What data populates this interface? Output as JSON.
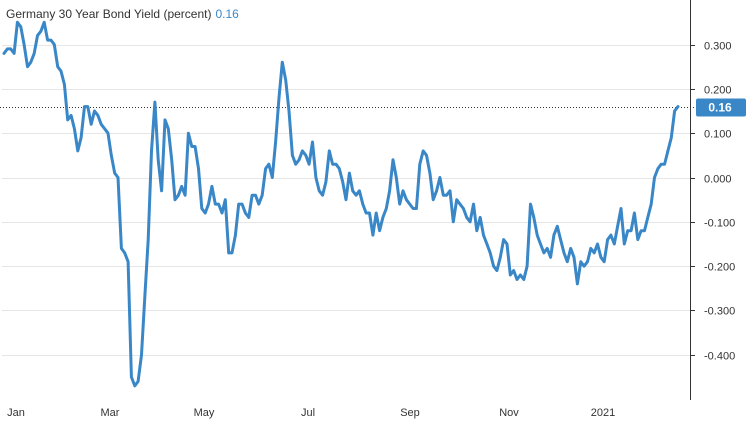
{
  "chart_data": {
    "type": "line",
    "title": "Germany 30 Year Bond Yield (percent)",
    "last_value_label": "0.16",
    "xlabel": "",
    "ylabel": "",
    "ylim": [
      -0.5,
      0.4
    ],
    "y_ticks": [
      -0.4,
      -0.3,
      -0.2,
      -0.1,
      0.0,
      0.1,
      0.2,
      0.3
    ],
    "y_tick_labels": [
      "-0.400",
      "-0.300",
      "-0.200",
      "-0.100",
      "0.000",
      "0.100",
      "0.200",
      "0.300"
    ],
    "x_ticks": [
      "Jan",
      "Mar",
      "May",
      "Jul",
      "Sep",
      "Nov",
      "2021"
    ],
    "grid": true,
    "line_color": "#3a87c8",
    "badge_color": "#3a87c8",
    "series": [
      {
        "values": [
          0.28,
          0.29,
          0.29,
          0.28,
          0.35,
          0.34,
          0.3,
          0.25,
          0.26,
          0.28,
          0.32,
          0.33,
          0.35,
          0.31,
          0.31,
          0.3,
          0.25,
          0.24,
          0.21,
          0.13,
          0.14,
          0.11,
          0.06,
          0.09,
          0.16,
          0.16,
          0.12,
          0.15,
          0.14,
          0.12,
          0.11,
          0.1,
          0.05,
          0.01,
          0.0,
          -0.16,
          -0.17,
          -0.19,
          -0.45,
          -0.47,
          -0.46,
          -0.4,
          -0.27,
          -0.14,
          0.06,
          0.17,
          0.04,
          -0.03,
          0.13,
          0.11,
          0.04,
          -0.05,
          -0.04,
          -0.02,
          -0.04,
          0.1,
          0.07,
          0.07,
          0.02,
          -0.07,
          -0.08,
          -0.06,
          -0.02,
          -0.06,
          -0.06,
          -0.08,
          -0.05,
          -0.17,
          -0.17,
          -0.13,
          -0.06,
          -0.06,
          -0.08,
          -0.09,
          -0.04,
          -0.04,
          -0.06,
          -0.04,
          0.02,
          0.03,
          0.0,
          0.08,
          0.18,
          0.26,
          0.22,
          0.15,
          0.05,
          0.03,
          0.04,
          0.06,
          0.05,
          0.03,
          0.08,
          0.0,
          -0.03,
          -0.04,
          -0.01,
          0.06,
          0.03,
          0.03,
          0.02,
          -0.01,
          -0.05,
          0.01,
          -0.03,
          -0.04,
          -0.03,
          -0.06,
          -0.08,
          -0.08,
          -0.13,
          -0.08,
          -0.12,
          -0.09,
          -0.07,
          -0.03,
          0.04,
          0.0,
          -0.06,
          -0.03,
          -0.05,
          -0.06,
          -0.07,
          -0.07,
          0.03,
          0.06,
          0.05,
          0.01,
          -0.05,
          -0.03,
          0.0,
          -0.04,
          -0.04,
          -0.03,
          -0.1,
          -0.05,
          -0.06,
          -0.07,
          -0.09,
          -0.1,
          -0.06,
          -0.12,
          -0.09,
          -0.13,
          -0.15,
          -0.17,
          -0.2,
          -0.21,
          -0.18,
          -0.14,
          -0.15,
          -0.22,
          -0.21,
          -0.23,
          -0.22,
          -0.23,
          -0.2,
          -0.06,
          -0.09,
          -0.13,
          -0.15,
          -0.17,
          -0.16,
          -0.18,
          -0.13,
          -0.11,
          -0.14,
          -0.17,
          -0.19,
          -0.16,
          -0.18,
          -0.24,
          -0.19,
          -0.2,
          -0.19,
          -0.16,
          -0.17,
          -0.15,
          -0.18,
          -0.19,
          -0.14,
          -0.13,
          -0.15,
          -0.11,
          -0.07,
          -0.15,
          -0.12,
          -0.12,
          -0.08,
          -0.14,
          -0.12,
          -0.12,
          -0.09,
          -0.06,
          0.0,
          0.02,
          0.03,
          0.03,
          0.06,
          0.09,
          0.15,
          0.16
        ]
      }
    ]
  }
}
